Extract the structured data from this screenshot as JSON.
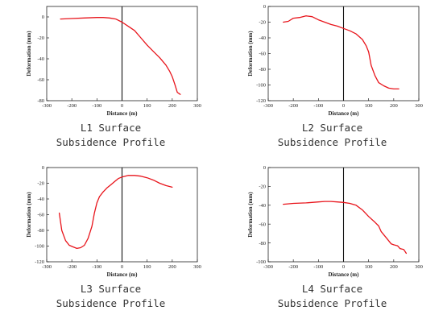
{
  "chart_data": [
    {
      "type": "line",
      "caption": [
        "L1 Surface",
        "Subsidence Profile"
      ],
      "xlabel": "Distance (m)",
      "ylabel": "Deformation (mm)",
      "xlim": [
        -300,
        300
      ],
      "ylim": [
        -80,
        10
      ],
      "xticks": [
        -300,
        -200,
        -100,
        0,
        100,
        200,
        300
      ],
      "yticks": [
        0,
        -20,
        -40,
        -60,
        -80
      ],
      "vline_x": 0,
      "line_color": "#e8141b",
      "series": [
        {
          "x": [
            -245,
            -200,
            -150,
            -100,
            -75,
            -50,
            -25,
            0,
            25,
            50,
            75,
            100,
            125,
            150,
            175,
            190,
            200,
            210,
            220,
            232
          ],
          "y": [
            -2,
            -1.5,
            -1,
            -0.5,
            -0.5,
            -1,
            -2,
            -5,
            -9,
            -13,
            -20,
            -27,
            -33,
            -39,
            -46,
            -52,
            -57,
            -64,
            -72,
            -74
          ]
        }
      ]
    },
    {
      "type": "line",
      "caption": [
        "L2 Surface",
        "Subsidence Profile"
      ],
      "xlabel": "Distance (m)",
      "ylabel": "Deformation (mm)",
      "xlim": [
        -300,
        300
      ],
      "ylim": [
        -120,
        0
      ],
      "xticks": [
        -300,
        -200,
        -100,
        0,
        100,
        200,
        300
      ],
      "yticks": [
        0,
        -20,
        -40,
        -60,
        -80,
        -100,
        -120
      ],
      "vline_x": 0,
      "line_color": "#e8141b",
      "series": [
        {
          "x": [
            -240,
            -220,
            -200,
            -175,
            -150,
            -125,
            -100,
            -75,
            -50,
            -25,
            0,
            25,
            50,
            75,
            90,
            100,
            110,
            125,
            140,
            160,
            180,
            200,
            220
          ],
          "y": [
            -20,
            -19,
            -15,
            -14,
            -12,
            -13,
            -17,
            -20,
            -23,
            -25,
            -28,
            -31,
            -35,
            -42,
            -50,
            -58,
            -75,
            -88,
            -97,
            -101,
            -104,
            -105,
            -105
          ]
        }
      ]
    },
    {
      "type": "line",
      "caption": [
        "L3 Surface",
        "Subsidence Profile"
      ],
      "xlabel": "Distance (m)",
      "ylabel": "Deformation (mm)",
      "xlim": [
        -300,
        300
      ],
      "ylim": [
        -120,
        0
      ],
      "xticks": [
        -300,
        -200,
        -100,
        0,
        100,
        200,
        300
      ],
      "yticks": [
        0,
        -20,
        -40,
        -60,
        -80,
        -100,
        -120
      ],
      "vline_x": 0,
      "line_color": "#e8141b",
      "series": [
        {
          "x": [
            -250,
            -240,
            -225,
            -210,
            -195,
            -180,
            -165,
            -150,
            -135,
            -120,
            -110,
            -100,
            -90,
            -75,
            -60,
            -45,
            -30,
            -15,
            0,
            25,
            50,
            75,
            100,
            125,
            150,
            175,
            200
          ],
          "y": [
            -58,
            -80,
            -93,
            -99,
            -101,
            -103,
            -102,
            -99,
            -90,
            -75,
            -58,
            -45,
            -37,
            -31,
            -26,
            -22,
            -18,
            -14,
            -12,
            -10,
            -10,
            -11,
            -13,
            -16,
            -20,
            -23,
            -25
          ]
        }
      ]
    },
    {
      "type": "line",
      "caption": [
        "L4 Surface",
        "Subsidence Profile"
      ],
      "xlabel": "Distance (m)",
      "ylabel": "Deformation (mm)",
      "xlim": [
        -300,
        300
      ],
      "ylim": [
        -100,
        0
      ],
      "xticks": [
        -300,
        -200,
        -100,
        0,
        100,
        200,
        300
      ],
      "yticks": [
        0,
        -20,
        -40,
        -60,
        -80,
        -100
      ],
      "vline_x": 0,
      "line_color": "#e8141b",
      "series": [
        {
          "x": [
            -240,
            -200,
            -150,
            -100,
            -75,
            -50,
            -25,
            0,
            25,
            50,
            75,
            100,
            125,
            140,
            150,
            175,
            190,
            200,
            215,
            225,
            240,
            250
          ],
          "y": [
            -39,
            -38,
            -37.5,
            -36.5,
            -36,
            -36,
            -36.5,
            -37,
            -38,
            -40,
            -45,
            -52,
            -58,
            -62,
            -68,
            -76,
            -81,
            -82,
            -83,
            -86,
            -87,
            -91
          ]
        }
      ]
    }
  ]
}
